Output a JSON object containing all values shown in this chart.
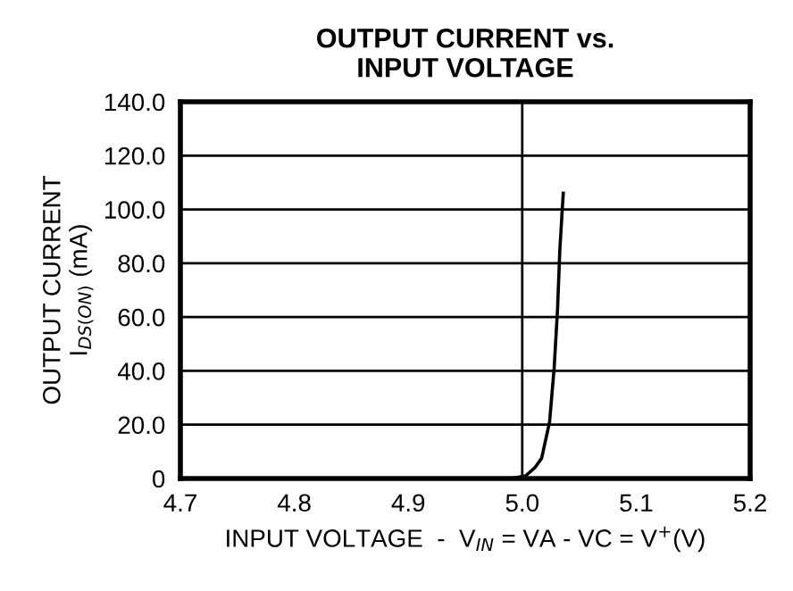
{
  "chart_data": {
    "type": "line",
    "title": "OUTPUT CURRENT vs.\nINPUT VOLTAGE",
    "xlabel": "INPUT VOLTAGE  -  V$_{IN}$ = VA - VC = V$^{+}$(V)",
    "ylabel": "OUTPUT CURRENT\nI$_{DS(ON)}$ (mA)",
    "series": [
      {
        "color": "#000000",
        "x": [
          4.99,
          5.003,
          5.011,
          5.017,
          5.024,
          5.028,
          5.031,
          5.033,
          5.036
        ],
        "values": [
          0,
          1,
          4,
          7.5,
          21,
          41,
          63,
          85,
          106
        ]
      }
    ],
    "xlim": [
      4.7,
      5.2
    ],
    "xticks": [
      4.7,
      4.8,
      4.9,
      {
        "value": 5.0,
        "label": "5.0"
      },
      5.1,
      5.2
    ],
    "ylim": [
      0,
      140
    ],
    "yticks": [
      {
        "value": 0,
        "label": "0"
      },
      {
        "value": 20,
        "label": "20.0"
      },
      {
        "value": 40,
        "label": "40.0"
      },
      {
        "value": 60,
        "label": "60.0"
      },
      {
        "value": 80,
        "label": "80.0"
      },
      {
        "value": 100,
        "label": "100.0"
      },
      {
        "value": 120,
        "label": "120.0"
      },
      {
        "value": 140,
        "label": "140.0"
      }
    ],
    "grid": "y",
    "ref_lines": [
      {
        "axis": "x",
        "value": 5.0,
        "color": "#000000"
      }
    ],
    "legend": false,
    "marker": "none",
    "line_style": "solid"
  }
}
